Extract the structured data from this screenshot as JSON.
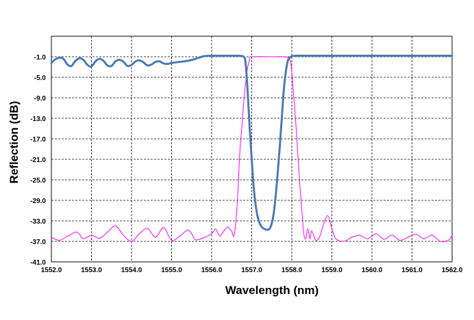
{
  "chart_data": {
    "type": "line",
    "xlabel": "Wavelength (nm)",
    "ylabel": "Reflection (dB)",
    "xlim": [
      1552.0,
      1562.0
    ],
    "ylim": [
      -41.0,
      3.0
    ],
    "xticks": [
      1552.0,
      1553.0,
      1554.0,
      1555.0,
      1556.0,
      1557.0,
      1558.0,
      1559.0,
      1560.0,
      1561.0,
      1562.0
    ],
    "xtick_labels": [
      "1552.0",
      "1553.0",
      "1554.0",
      "1555.0",
      "1556.0",
      "1557.0",
      "1558.0",
      "1559.0",
      "1560.0",
      "1561.0",
      "1562.0"
    ],
    "yticks": [
      -1.0,
      -5.0,
      -9.0,
      -13.0,
      -17.0,
      -21.0,
      -25.0,
      -29.0,
      -33.0,
      -37.0,
      -41.0
    ],
    "ytick_labels": [
      "-1.0",
      "-5.0",
      "-9.0",
      "-13.0",
      "-17.0",
      "-21.0",
      "-25.0",
      "-29.0",
      "-33.0",
      "-37.0",
      "-41.0"
    ],
    "grid": true,
    "legend": "none",
    "series": [
      {
        "color": "#4a7ab5",
        "x": [
          1552.0,
          1552.1,
          1552.2,
          1552.3,
          1552.4,
          1552.5,
          1552.6,
          1552.7,
          1552.8,
          1552.9,
          1553.0,
          1553.1,
          1553.2,
          1553.3,
          1553.4,
          1553.5,
          1553.6,
          1553.7,
          1553.8,
          1553.9,
          1554.0,
          1554.1,
          1554.2,
          1554.3,
          1554.4,
          1554.5,
          1554.6,
          1554.7,
          1554.8,
          1554.9,
          1555.0,
          1555.2,
          1555.4,
          1555.6,
          1555.8,
          1556.0,
          1556.3,
          1556.6,
          1556.8,
          1556.85,
          1556.9,
          1556.95,
          1557.0,
          1557.05,
          1557.1,
          1557.15,
          1557.2,
          1557.25,
          1557.3,
          1557.35,
          1557.4,
          1557.45,
          1557.5,
          1557.55,
          1557.6,
          1557.65,
          1557.7,
          1557.75,
          1557.8,
          1557.85,
          1557.9,
          1557.95,
          1558.0,
          1558.1,
          1558.5,
          1559.0,
          1560.0,
          1561.0,
          1562.0
        ],
        "y": [
          -2.2,
          -1.5,
          -1.2,
          -1.4,
          -2.5,
          -2.8,
          -1.8,
          -1.3,
          -1.6,
          -2.6,
          -2.9,
          -1.9,
          -1.4,
          -1.8,
          -2.7,
          -2.8,
          -1.9,
          -1.6,
          -2.0,
          -2.8,
          -2.6,
          -1.9,
          -1.7,
          -2.1,
          -2.7,
          -2.5,
          -2.0,
          -1.9,
          -2.3,
          -2.4,
          -2.2,
          -2.0,
          -1.8,
          -1.4,
          -0.9,
          -0.8,
          -0.8,
          -0.8,
          -1.0,
          -2.5,
          -8.0,
          -15.0,
          -21.0,
          -26.5,
          -30.0,
          -32.3,
          -33.5,
          -34.2,
          -34.5,
          -34.7,
          -34.7,
          -34.5,
          -33.5,
          -31.5,
          -28.0,
          -23.5,
          -18.5,
          -13.0,
          -7.5,
          -4.0,
          -1.8,
          -1.2,
          -0.9,
          -0.8,
          -0.8,
          -0.8,
          -0.8,
          -0.8,
          -0.8
        ]
      },
      {
        "color": "#ff00ff",
        "x": [
          1552.0,
          1552.2,
          1552.4,
          1552.6,
          1552.7,
          1552.8,
          1553.0,
          1553.2,
          1553.4,
          1553.6,
          1553.8,
          1554.0,
          1554.2,
          1554.4,
          1554.6,
          1554.8,
          1555.0,
          1555.2,
          1555.4,
          1555.5,
          1555.6,
          1555.8,
          1556.0,
          1556.1,
          1556.2,
          1556.3,
          1556.4,
          1556.45,
          1556.5,
          1556.55,
          1556.6,
          1556.65,
          1556.7,
          1556.75,
          1556.8,
          1556.85,
          1556.9,
          1556.95,
          1557.0,
          1557.5,
          1557.8,
          1557.95,
          1558.0,
          1558.05,
          1558.1,
          1558.15,
          1558.2,
          1558.25,
          1558.3,
          1558.35,
          1558.4,
          1558.45,
          1558.5,
          1558.6,
          1558.7,
          1558.8,
          1558.9,
          1559.0,
          1559.1,
          1559.3,
          1559.5,
          1559.7,
          1559.9,
          1560.1,
          1560.3,
          1560.5,
          1560.7,
          1560.9,
          1561.1,
          1561.3,
          1561.5,
          1561.7,
          1561.9,
          1562.0
        ],
        "y": [
          -36.2,
          -36.8,
          -36.0,
          -35.2,
          -35.6,
          -36.5,
          -35.8,
          -36.4,
          -35.2,
          -34.0,
          -35.8,
          -37.0,
          -35.5,
          -34.5,
          -36.2,
          -34.3,
          -36.8,
          -36.0,
          -34.8,
          -35.5,
          -36.7,
          -36.3,
          -35.5,
          -34.6,
          -36.0,
          -35.0,
          -34.2,
          -34.6,
          -35.0,
          -36.0,
          -33.5,
          -28.0,
          -20.0,
          -15.0,
          -10.0,
          -6.0,
          -3.0,
          -1.5,
          -1.0,
          -1.0,
          -1.0,
          -1.5,
          -4.0,
          -9.0,
          -14.0,
          -20.0,
          -26.0,
          -31.0,
          -35.5,
          -36.5,
          -34.5,
          -36.5,
          -35.0,
          -36.8,
          -36.0,
          -33.5,
          -32.0,
          -34.5,
          -36.5,
          -37.0,
          -36.2,
          -35.8,
          -36.5,
          -35.5,
          -36.6,
          -35.8,
          -36.8,
          -36.2,
          -35.6,
          -36.5,
          -35.8,
          -37.0,
          -36.8,
          -35.9
        ]
      }
    ]
  }
}
